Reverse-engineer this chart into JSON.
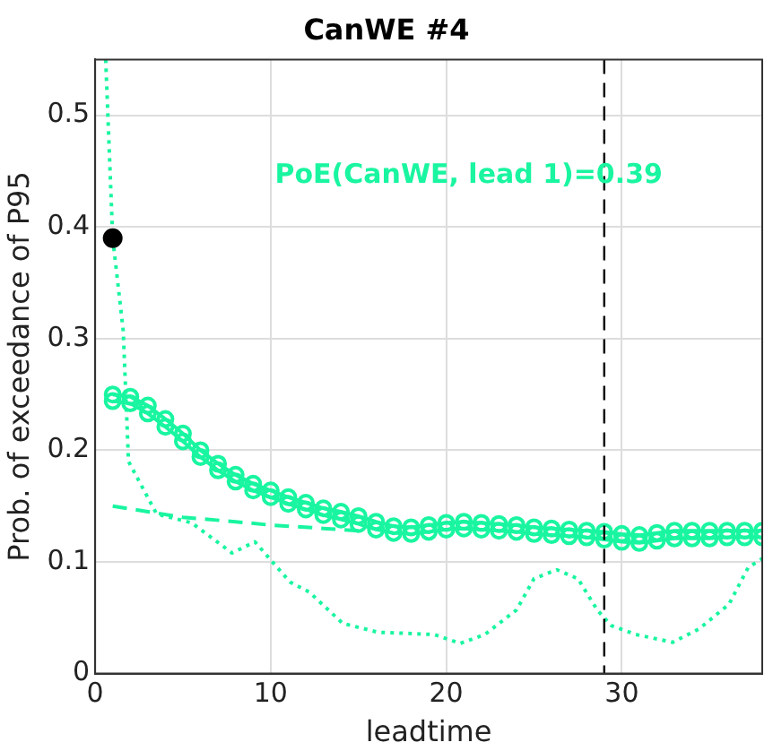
{
  "chart_data": {
    "type": "line",
    "title": "CanWE #4",
    "xlabel": "leadtime",
    "ylabel": "Prob. of exceedance of P95",
    "annotations": [
      "PoE(CanWE, lead 1)=0.39"
    ],
    "x": [
      1,
      2,
      3,
      4,
      5,
      6,
      7,
      8,
      9,
      10,
      11,
      12,
      13,
      14,
      15,
      16,
      17,
      18,
      19,
      20,
      21,
      22,
      23,
      24,
      25,
      26,
      27,
      28,
      29,
      30,
      31,
      32,
      33,
      34,
      35,
      36,
      37,
      38
    ],
    "series": [
      {
        "color": "#19f5a0",
        "marker": "circle",
        "line_style": "solid",
        "values": [
          0.25,
          0.248,
          0.24,
          0.228,
          0.215,
          0.2,
          0.188,
          0.178,
          0.17,
          0.164,
          0.158,
          0.153,
          0.148,
          0.145,
          0.141,
          0.136,
          0.132,
          0.131,
          0.133,
          0.135,
          0.136,
          0.135,
          0.134,
          0.133,
          0.131,
          0.13,
          0.129,
          0.128,
          0.127,
          0.125,
          0.124,
          0.126,
          0.128,
          0.128,
          0.128,
          0.128,
          0.128,
          0.128
        ]
      },
      {
        "color": "#19f5a0",
        "marker": "circle",
        "line_style": "solid",
        "values": [
          0.244,
          0.242,
          0.233,
          0.221,
          0.208,
          0.194,
          0.182,
          0.172,
          0.164,
          0.158,
          0.152,
          0.147,
          0.142,
          0.138,
          0.134,
          0.129,
          0.126,
          0.125,
          0.127,
          0.129,
          0.13,
          0.129,
          0.128,
          0.127,
          0.125,
          0.124,
          0.123,
          0.122,
          0.12,
          0.118,
          0.117,
          0.119,
          0.121,
          0.121,
          0.121,
          0.122,
          0.122,
          0.122
        ]
      },
      {
        "color": "#19f5a0",
        "marker": "none",
        "line_style": "dashed",
        "x": [
          1,
          3,
          5,
          8,
          10,
          13,
          15
        ],
        "values": [
          0.15,
          0.145,
          0.14,
          0.136,
          0.133,
          0.13,
          0.128
        ]
      },
      {
        "color": "#19f5a0",
        "marker": "none",
        "line_style": "dotted",
        "x": [
          0.6,
          1.0,
          1.6,
          1.9,
          3.5,
          5.5,
          7.8,
          9.1,
          11.1,
          12.2,
          14.1,
          16.1,
          19.3,
          20.8,
          22.2,
          24,
          25,
          26.3,
          27.5,
          28.6,
          29.4,
          30.8,
          32.9,
          34.4,
          36.1,
          37.2,
          38
        ],
        "values": [
          0.55,
          0.39,
          0.307,
          0.19,
          0.143,
          0.135,
          0.108,
          0.118,
          0.082,
          0.073,
          0.045,
          0.037,
          0.035,
          0.027,
          0.035,
          0.057,
          0.085,
          0.093,
          0.085,
          0.057,
          0.043,
          0.035,
          0.028,
          0.04,
          0.062,
          0.095,
          0.103
        ]
      },
      {
        "type": "scatter",
        "color": "#000000",
        "marker": "circle",
        "x": [
          1
        ],
        "values": [
          0.39
        ]
      }
    ],
    "ref_lines": [
      {
        "axis": "x",
        "value": 29,
        "color": "#000000",
        "line_style": "dashed"
      }
    ],
    "xlim": [
      0,
      38
    ],
    "xticks": [
      0,
      10,
      20,
      30
    ],
    "ylim": [
      0,
      0.55
    ],
    "yticks": [
      0,
      0.1,
      0.2,
      0.3,
      0.4,
      0.5
    ],
    "grid": true,
    "legend": false
  }
}
